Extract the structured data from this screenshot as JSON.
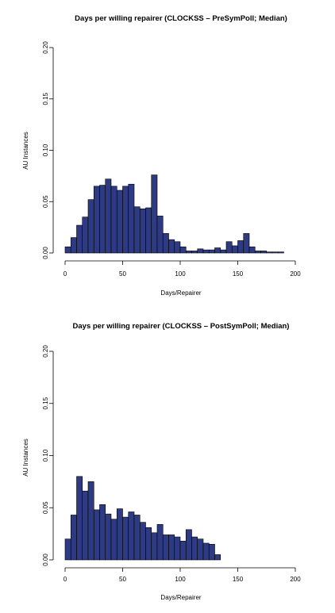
{
  "colors": {
    "bar_fill": "#2e3a82",
    "bar_stroke": "#000000",
    "axis": "#000000"
  },
  "chart_data": [
    {
      "type": "bar",
      "title": "Days per willing repairer (CLOCKSS – PreSymPoll; Median)",
      "xlabel": "Days/Repairer",
      "ylabel": "AU Instances",
      "xlim": [
        0,
        200
      ],
      "ylim": [
        0,
        0.2
      ],
      "xticks": [
        "0",
        "50",
        "100",
        "150",
        "200"
      ],
      "yticks": [
        "0.00",
        "0.05",
        "0.10",
        "0.15",
        "0.20"
      ],
      "bin_width": 5,
      "bin_start": 0,
      "values": [
        0.006,
        0.015,
        0.027,
        0.035,
        0.052,
        0.065,
        0.066,
        0.072,
        0.065,
        0.061,
        0.065,
        0.067,
        0.045,
        0.043,
        0.044,
        0.076,
        0.036,
        0.019,
        0.013,
        0.011,
        0.006,
        0.002,
        0.002,
        0.004,
        0.003,
        0.003,
        0.005,
        0.003,
        0.011,
        0.007,
        0.012,
        0.019,
        0.006,
        0.002,
        0.002,
        0.001,
        0.001,
        0.001
      ],
      "grid": false
    },
    {
      "type": "bar",
      "title": "Days per willing repairer (CLOCKSS – PostSymPoll; Median)",
      "xlabel": "Days/Repairer",
      "ylabel": "AU Instances",
      "xlim": [
        0,
        200
      ],
      "ylim": [
        0,
        0.2
      ],
      "xticks": [
        "0",
        "50",
        "100",
        "150",
        "200"
      ],
      "yticks": [
        "0.00",
        "0.05",
        "0.10",
        "0.15",
        "0.20"
      ],
      "bin_width": 5,
      "bin_start": 0,
      "values": [
        0.02,
        0.043,
        0.08,
        0.066,
        0.075,
        0.048,
        0.053,
        0.044,
        0.039,
        0.049,
        0.041,
        0.046,
        0.043,
        0.036,
        0.031,
        0.026,
        0.034,
        0.024,
        0.024,
        0.022,
        0.018,
        0.029,
        0.022,
        0.02,
        0.016,
        0.015,
        0.005
      ],
      "grid": false
    }
  ]
}
